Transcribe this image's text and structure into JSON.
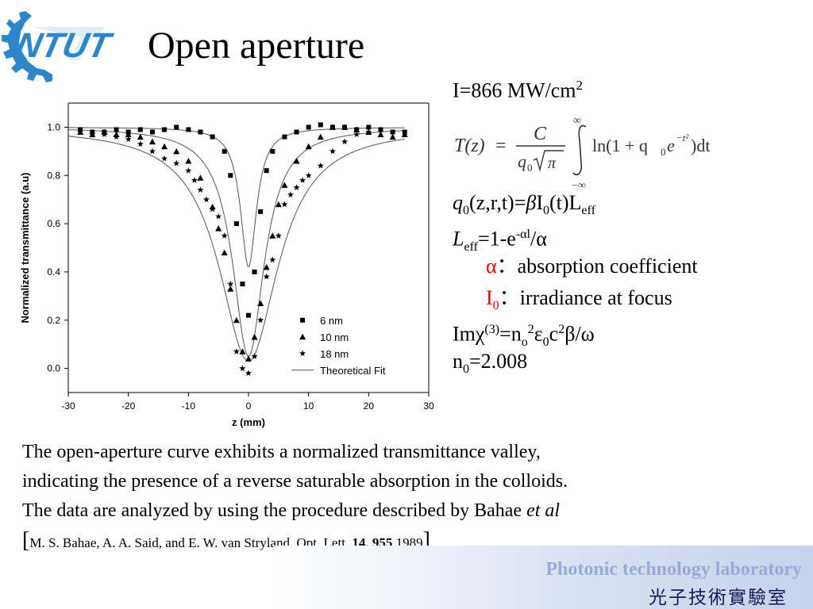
{
  "slide": {
    "title": "Open aperture",
    "logo_text": "NTUT"
  },
  "right_panel": {
    "intensity": {
      "text": "I=866 MW/cm",
      "sup": "2"
    },
    "formula": {
      "lhs": "T(z)",
      "numerator": "C",
      "denominator_q": "q",
      "denominator_sub": "0",
      "denominator_root": "π",
      "upper_limit": "∞",
      "lower_limit": "−∞",
      "integrand_ln": "ln(1 + q",
      "integrand_sub": "0",
      "integrand_e": "e",
      "integrand_exp": "−t²",
      "integrand_end": ")dt"
    },
    "q0_line": {
      "q": "q",
      "sub0": "0",
      "args": "(z,r,t)=",
      "beta": "β",
      "I": "I",
      "subI": "0",
      "t": "(t)L",
      "eff": "eff"
    },
    "leff_line": {
      "L": "L",
      "eff": "eff",
      "eq": "=1-e",
      "exp": "-αl",
      "tail": "/α"
    },
    "alpha_line": {
      "sym": "α",
      "colon": "：",
      "desc": "absorption coefficient"
    },
    "i0_line": {
      "sym": "I",
      "sub": "0",
      "colon": "：",
      "desc": "irradiance at focus"
    },
    "chi_line": {
      "a": "Imχ",
      "sup3": "(3)",
      "b": "=n",
      "subo": "o",
      "sup2a": "2",
      "eps": "ε",
      "sub0": "0",
      "c": "c",
      "sup2b": "2",
      "tail": "β/ω"
    },
    "n0_line": {
      "n": "n",
      "sub": "0",
      "val": "=2.008"
    }
  },
  "body_text": {
    "line1": "The open-aperture curve exhibits a normalized transmittance valley,",
    "line2": " indicating the presence of a reverse saturable absorption in the colloids.",
    "line3_a": "The data are analyzed by using the procedure described by Bahae ",
    "line3_b": "et al",
    "ref_open": "[",
    "ref_a": "M. S. Bahae, A. A. Said, and E. W. van Stryland, Opt. Lett. ",
    "ref_b": "14, 955",
    "ref_c": " 1989",
    "ref_close": "]"
  },
  "footer": {
    "english": "Photonic technology laboratory",
    "chinese": "光子技術實驗室"
  },
  "colors": {
    "red": "#e00000",
    "footer_text": "#9aa9d6",
    "logo_blue": "#2d86c8"
  },
  "chart_data": {
    "type": "scatter",
    "xlabel": "z (mm)",
    "ylabel": "Normalized transmittance (a.u)",
    "xlim": [
      -30,
      30
    ],
    "ylim": [
      -0.1,
      1.1
    ],
    "xticks": [
      -30,
      -20,
      -10,
      0,
      10,
      20,
      30
    ],
    "yticks": [
      0.0,
      0.2,
      0.4,
      0.6,
      0.8,
      1.0
    ],
    "grid": false,
    "legend_position": "bottom-right",
    "series": [
      {
        "name": "6 nm",
        "marker": "square",
        "x": [
          -28,
          -26,
          -24,
          -22,
          -20,
          -18,
          -16,
          -14,
          -12,
          -10,
          -8,
          -6,
          -4,
          -3,
          -2,
          -1,
          0,
          1,
          2,
          3,
          4,
          6,
          8,
          10,
          12,
          14,
          16,
          18,
          20,
          22,
          24,
          26
        ],
        "y": [
          0.99,
          0.98,
          0.98,
          0.99,
          0.98,
          0.99,
          0.98,
          0.99,
          1.0,
          0.99,
          0.98,
          0.96,
          0.9,
          0.8,
          0.6,
          0.35,
          0.22,
          0.4,
          0.65,
          0.82,
          0.9,
          0.96,
          0.98,
          1.0,
          1.01,
          1.0,
          1.0,
          0.99,
          1.0,
          0.99,
          0.98,
          0.98
        ]
      },
      {
        "name": "10 nm",
        "marker": "triangle",
        "x": [
          -28,
          -26,
          -24,
          -22,
          -20,
          -18,
          -16,
          -14,
          -12,
          -10,
          -8,
          -6,
          -5,
          -4,
          -3,
          -2,
          -1,
          0,
          1,
          2,
          3,
          4,
          5,
          6,
          8,
          10,
          12,
          14,
          16,
          18,
          20,
          22,
          24,
          26
        ],
        "y": [
          0.98,
          0.97,
          0.98,
          0.97,
          0.97,
          0.96,
          0.94,
          0.92,
          0.9,
          0.86,
          0.79,
          0.67,
          0.58,
          0.48,
          0.33,
          0.2,
          0.07,
          0.04,
          0.13,
          0.27,
          0.42,
          0.55,
          0.68,
          0.76,
          0.86,
          0.92,
          0.96,
          1.0,
          1.0,
          0.99,
          0.98,
          0.97,
          0.96,
          0.97
        ]
      },
      {
        "name": "18 nm",
        "marker": "star",
        "x": [
          -26,
          -24,
          -22,
          -20,
          -18,
          -16,
          -14,
          -12,
          -10,
          -9,
          -8,
          -7,
          -6,
          -5,
          -4,
          -3,
          -2,
          -1,
          0,
          1,
          2,
          3,
          4,
          5,
          6,
          7,
          8,
          9,
          10,
          12,
          14,
          16,
          18,
          20
        ],
        "y": [
          0.97,
          0.97,
          0.96,
          0.95,
          0.93,
          0.9,
          0.87,
          0.85,
          0.82,
          0.78,
          0.74,
          0.7,
          0.66,
          0.63,
          0.55,
          0.35,
          0.07,
          0.0,
          -0.02,
          0.05,
          0.2,
          0.38,
          0.45,
          0.55,
          0.68,
          0.72,
          0.75,
          0.78,
          0.8,
          0.84,
          0.9,
          0.94,
          0.97,
          0.98
        ]
      },
      {
        "name": "Theoretical Fit",
        "marker": "line",
        "curves": [
          {
            "depth": 0.58,
            "z0": 1.6
          },
          {
            "depth": 0.95,
            "z0": 3.2
          },
          {
            "depth": 0.97,
            "z0": 6.0
          }
        ]
      }
    ]
  }
}
